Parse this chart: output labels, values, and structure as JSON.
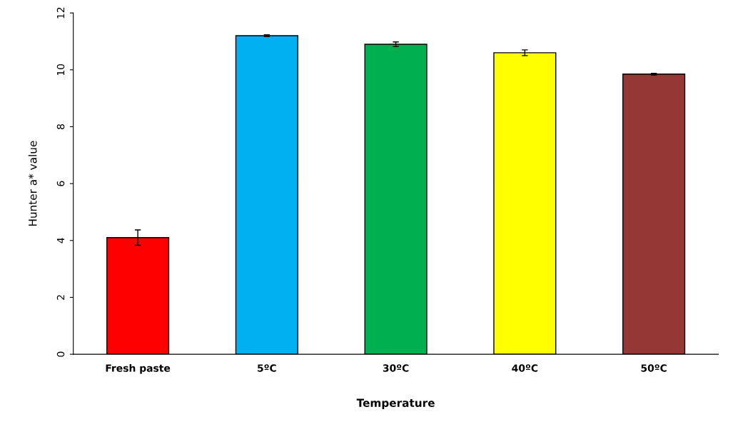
{
  "chart_data": {
    "type": "bar",
    "xlabel": "Temperature",
    "ylabel": "Hunter a* value",
    "categories": [
      "Fresh paste",
      "5ºC",
      "30ºC",
      "40ºC",
      "50ºC"
    ],
    "values": [
      4.1,
      11.2,
      10.9,
      10.6,
      9.85
    ],
    "errors": [
      0.27,
      0.03,
      0.08,
      0.1,
      0.03
    ],
    "colors": [
      "#ff0000",
      "#00b0f0",
      "#00b050",
      "#ffff00",
      "#953735"
    ],
    "ylim": [
      0,
      12
    ],
    "yticks": [
      0,
      2,
      4,
      6,
      8,
      10,
      12
    ],
    "grid": false
  }
}
